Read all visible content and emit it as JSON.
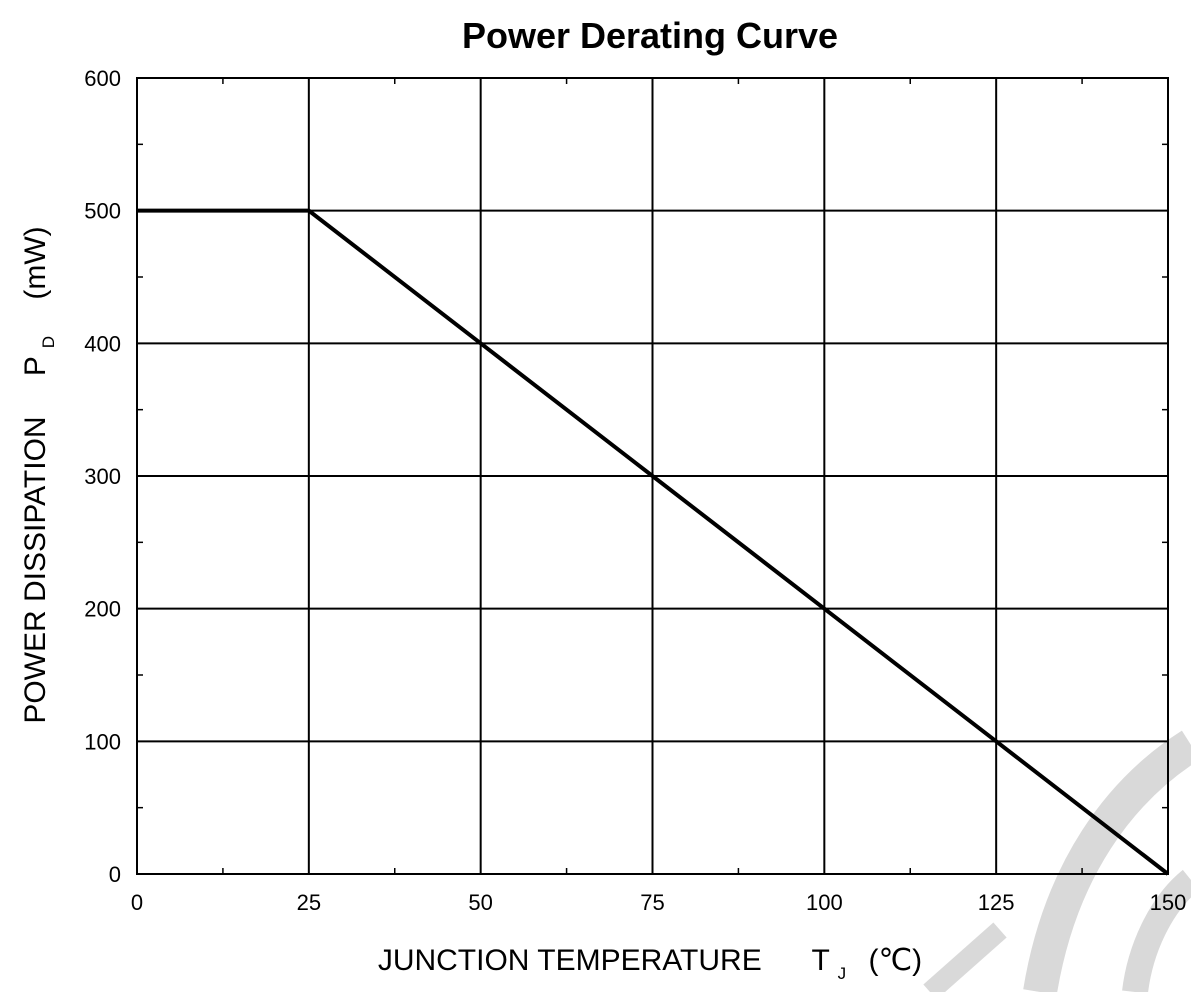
{
  "chart_data": {
    "type": "line",
    "title": "Power Derating Curve",
    "xlabel": {
      "main": "JUNCTION TEMPERATURE",
      "symbol": "T",
      "subscript": "J",
      "unit": "(℃)"
    },
    "ylabel": {
      "main": "POWER DISSIPATION",
      "symbol": "P",
      "subscript": "D",
      "unit": "(mW)"
    },
    "xlim": [
      0,
      150
    ],
    "ylim": [
      0,
      600
    ],
    "x_ticks": [
      0,
      25,
      50,
      75,
      100,
      125,
      150
    ],
    "y_ticks": [
      0,
      100,
      200,
      300,
      400,
      500,
      600
    ],
    "x_minor_step": 12.5,
    "y_minor_step": 50,
    "grid": true,
    "series": [
      {
        "x": [
          0,
          25,
          50,
          75,
          100,
          125,
          150
        ],
        "y": [
          500,
          500,
          400,
          300,
          200,
          100,
          0
        ]
      }
    ],
    "colors": {
      "line": "#000000",
      "grid": "#000000",
      "watermark": "#d9d9d9"
    }
  }
}
